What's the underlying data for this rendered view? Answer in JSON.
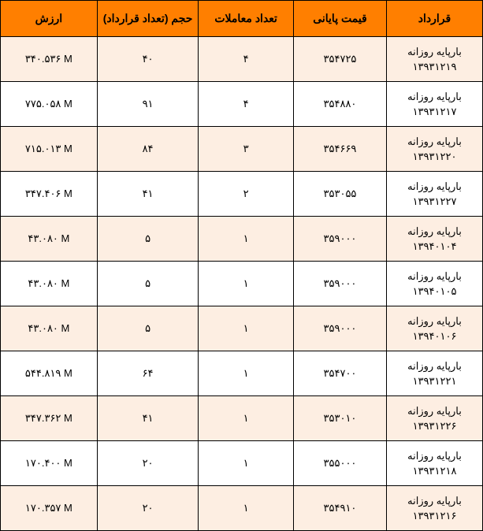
{
  "columns": [
    "قرارداد",
    "قیمت پایانی",
    "تعداد معاملات",
    "حجم (تعداد قرارداد)",
    "ارزش"
  ],
  "rows": [
    {
      "contract_name": "بارپایه روزانه",
      "contract_date": "۱۳۹۳۱۲۱۹",
      "price": "۳۵۴۷۲۵",
      "trades": "۴",
      "volume": "۴۰",
      "value": "۳۴۰.۵۳۶ M"
    },
    {
      "contract_name": "بارپایه روزانه",
      "contract_date": "۱۳۹۳۱۲۱۷",
      "price": "۳۵۴۸۸۰",
      "trades": "۴",
      "volume": "۹۱",
      "value": "۷۷۵.۰۵۸ M"
    },
    {
      "contract_name": "بارپایه روزانه",
      "contract_date": "۱۳۹۳۱۲۲۰",
      "price": "۳۵۴۶۶۹",
      "trades": "۳",
      "volume": "۸۴",
      "value": "۷۱۵.۰۱۳ M"
    },
    {
      "contract_name": "بارپایه روزانه",
      "contract_date": "۱۳۹۳۱۲۲۷",
      "price": "۳۵۳۰۵۵",
      "trades": "۲",
      "volume": "۴۱",
      "value": "۳۴۷.۴۰۶ M"
    },
    {
      "contract_name": "بارپایه روزانه",
      "contract_date": "۱۳۹۴۰۱۰۴",
      "price": "۳۵۹۰۰۰",
      "trades": "۱",
      "volume": "۵",
      "value": "۴۳.۰۸۰ M"
    },
    {
      "contract_name": "بارپایه روزانه",
      "contract_date": "۱۳۹۴۰۱۰۵",
      "price": "۳۵۹۰۰۰",
      "trades": "۱",
      "volume": "۵",
      "value": "۴۳.۰۸۰ M"
    },
    {
      "contract_name": "بارپایه روزانه",
      "contract_date": "۱۳۹۴۰۱۰۶",
      "price": "۳۵۹۰۰۰",
      "trades": "۱",
      "volume": "۵",
      "value": "۴۳.۰۸۰ M"
    },
    {
      "contract_name": "بارپایه روزانه",
      "contract_date": "۱۳۹۳۱۲۲۱",
      "price": "۳۵۴۷۰۰",
      "trades": "۱",
      "volume": "۶۴",
      "value": "۵۴۴.۸۱۹ M"
    },
    {
      "contract_name": "بارپایه روزانه",
      "contract_date": "۱۳۹۳۱۲۲۶",
      "price": "۳۵۳۰۱۰",
      "trades": "۱",
      "volume": "۴۱",
      "value": "۳۴۷.۳۶۲ M"
    },
    {
      "contract_name": "بارپایه روزانه",
      "contract_date": "۱۳۹۳۱۲۱۸",
      "price": "۳۵۵۰۰۰",
      "trades": "۱",
      "volume": "۲۰",
      "value": "۱۷۰.۴۰۰ M"
    },
    {
      "contract_name": "بارپایه روزانه",
      "contract_date": "۱۳۹۳۱۲۱۶",
      "price": "۳۵۴۹۱۰",
      "trades": "۱",
      "volume": "۲۰",
      "value": "۱۷۰.۳۵۷ M"
    }
  ],
  "header_bg": "#ff7f00",
  "row_odd_bg": "#fdeee2",
  "row_even_bg": "#ffffff",
  "border_color": "#000000"
}
